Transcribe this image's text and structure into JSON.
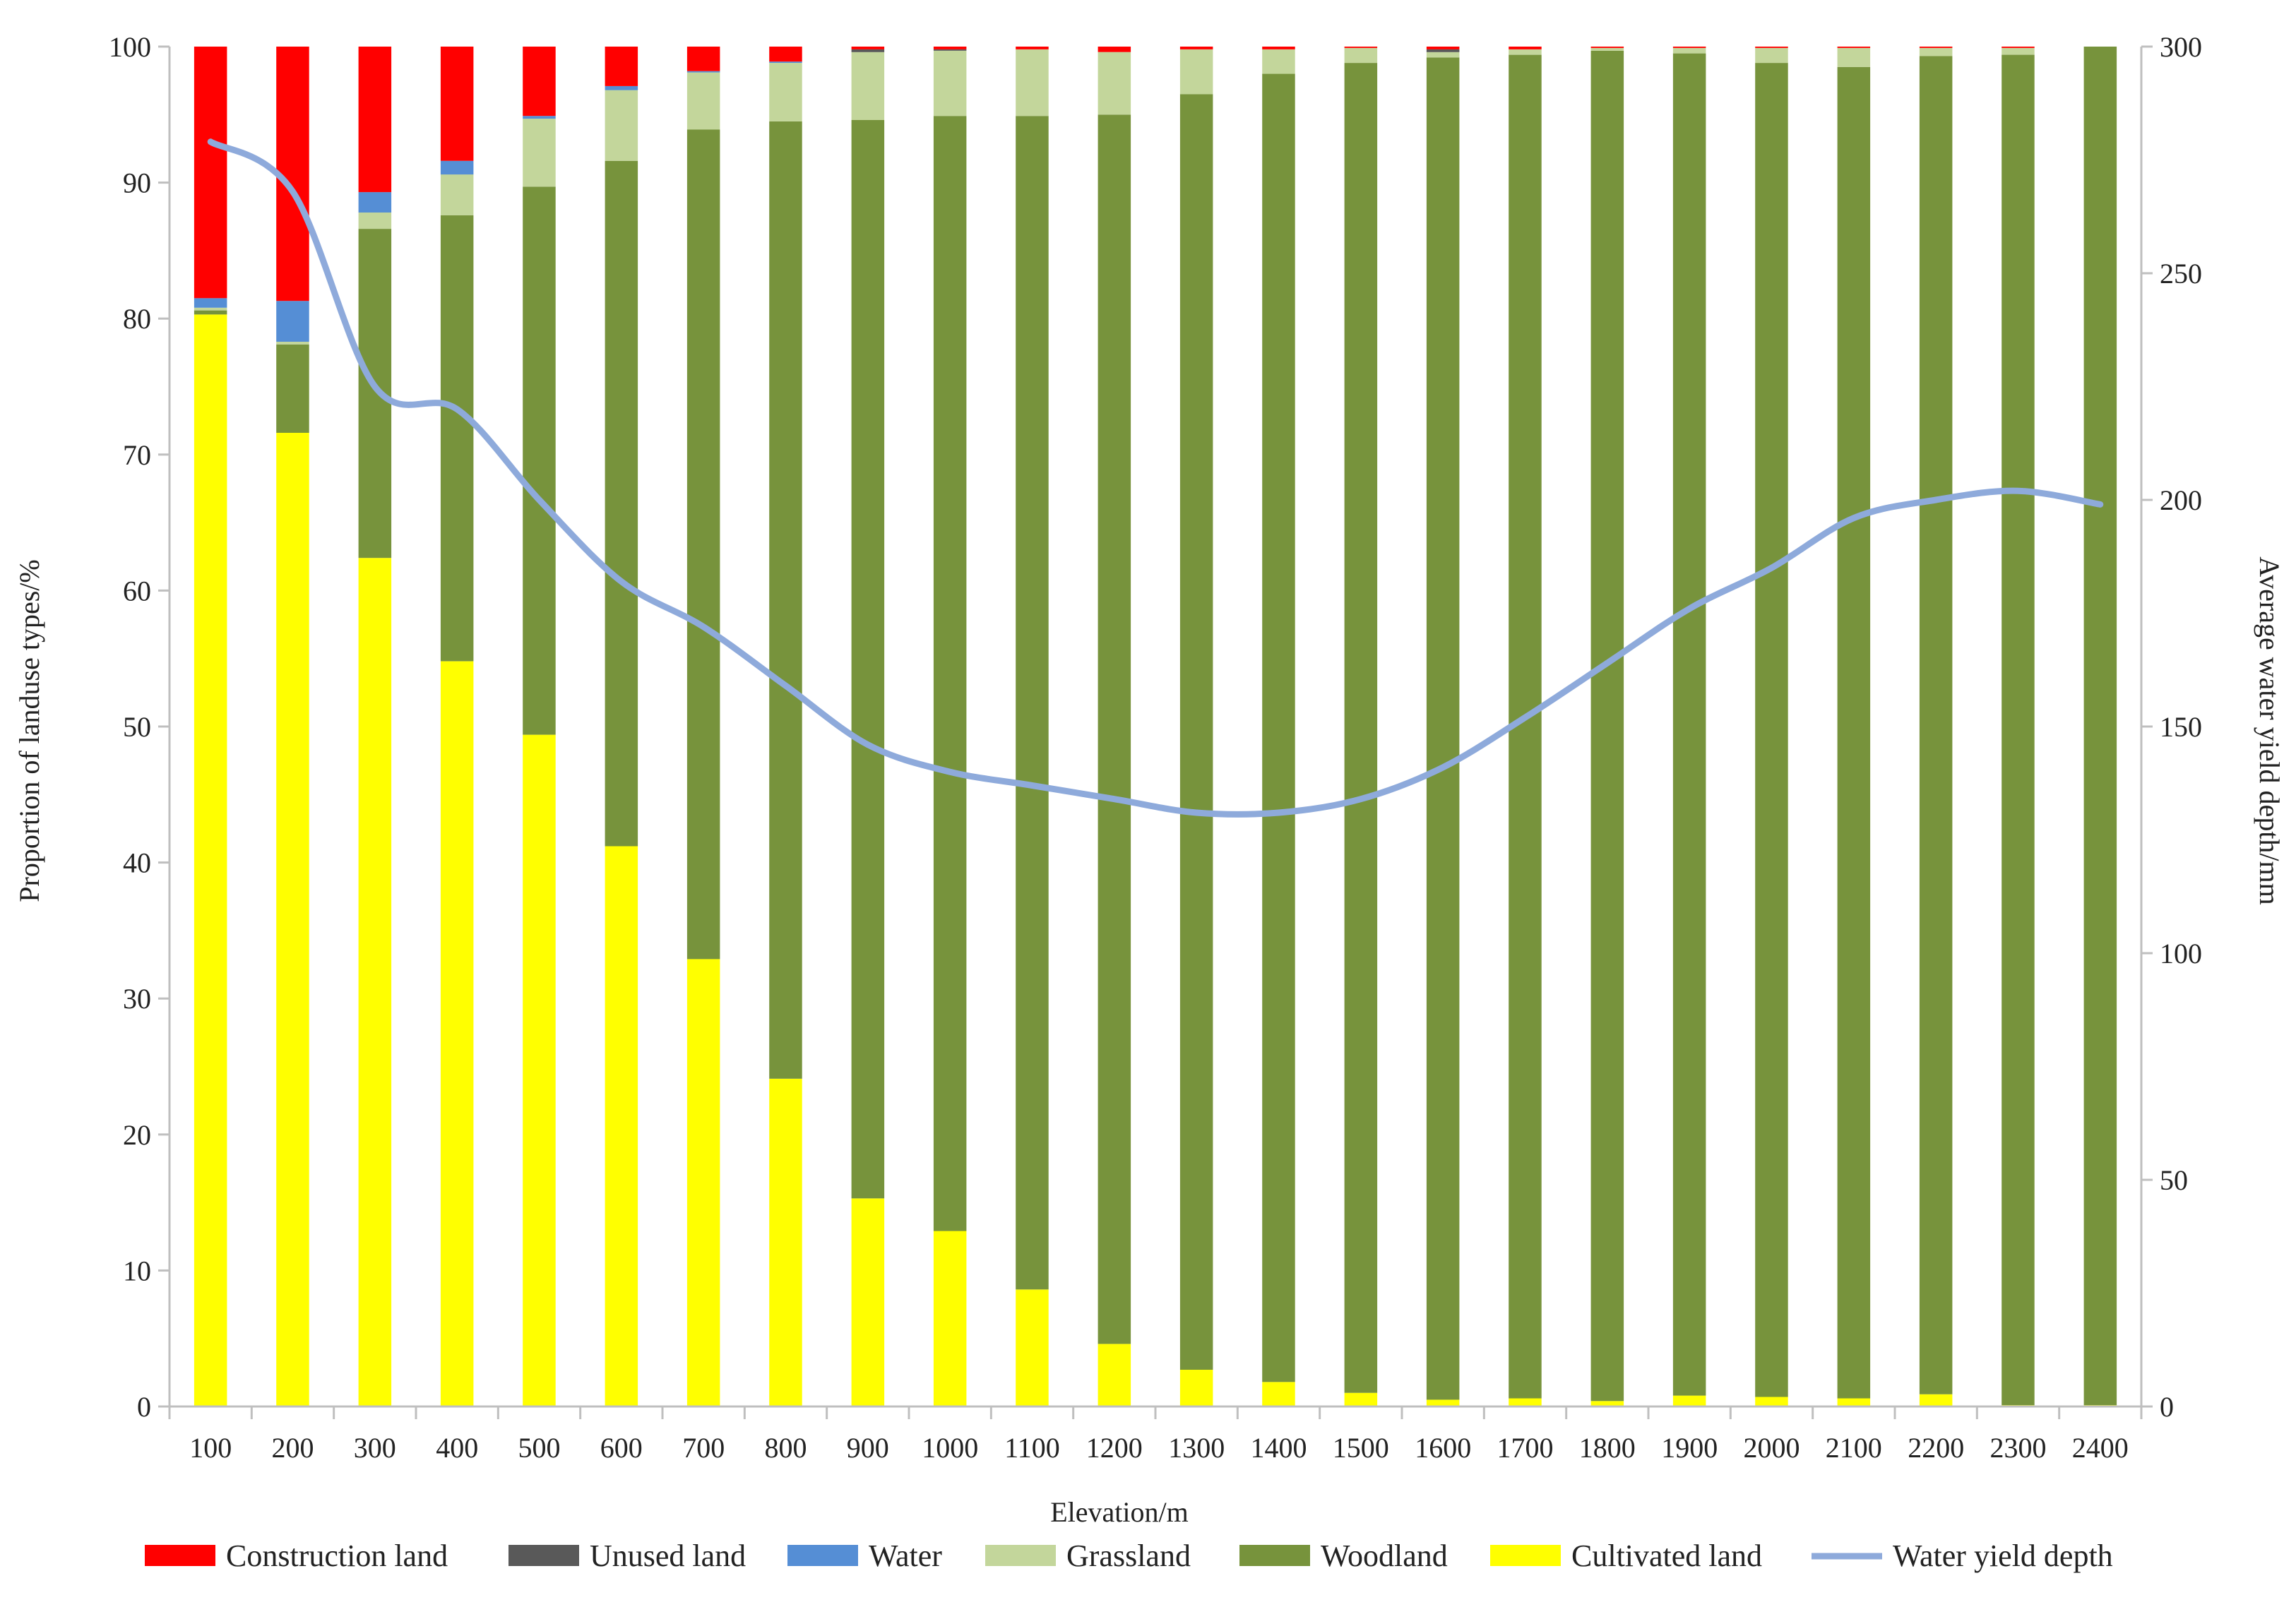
{
  "chart_data": {
    "type": "bar",
    "stacked": true,
    "xlabel": "Elevation/m",
    "ylabel_left": "Proportion of landuse types/%",
    "ylabel_right": "Average water yield depth/mm",
    "ylim_left": [
      0,
      100
    ],
    "ylim_right": [
      0,
      300
    ],
    "yticks_left": [
      "0",
      "10",
      "20",
      "30",
      "40",
      "50",
      "60",
      "70",
      "80",
      "90",
      "100"
    ],
    "yticks_right": [
      "0",
      "50",
      "100",
      "150",
      "200",
      "250",
      "300"
    ],
    "grid": false,
    "legend_position": "bottom",
    "categories": [
      "100",
      "200",
      "300",
      "400",
      "500",
      "600",
      "700",
      "800",
      "900",
      "1000",
      "1100",
      "1200",
      "1300",
      "1400",
      "1500",
      "1600",
      "1700",
      "1800",
      "1900",
      "2000",
      "2100",
      "2200",
      "2300",
      "2400"
    ],
    "series": [
      {
        "name": "Cultivated land",
        "color": "#ffff00",
        "values": [
          80.3,
          71.6,
          62.4,
          54.8,
          49.4,
          41.2,
          32.9,
          24.1,
          15.3,
          12.9,
          8.6,
          4.6,
          2.7,
          1.8,
          1.0,
          0.5,
          0.6,
          0.4,
          0.8,
          0.7,
          0.6,
          0.9,
          0.1,
          0.1
        ]
      },
      {
        "name": "Woodland",
        "color": "#77933c",
        "values": [
          0.3,
          6.5,
          24.2,
          32.8,
          40.3,
          50.4,
          61.0,
          70.4,
          79.3,
          82.0,
          86.3,
          90.4,
          93.8,
          96.2,
          97.8,
          98.7,
          98.8,
          99.3,
          98.7,
          98.1,
          97.9,
          98.4,
          99.3,
          99.9
        ]
      },
      {
        "name": "Grassland",
        "color": "#c3d69b",
        "values": [
          0.2,
          0.2,
          1.2,
          3.0,
          5.0,
          5.2,
          4.2,
          4.3,
          5.0,
          4.8,
          4.9,
          4.6,
          3.3,
          1.8,
          1.1,
          0.4,
          0.4,
          0.2,
          0.4,
          1.1,
          1.4,
          0.6,
          0.5,
          0.0
        ]
      },
      {
        "name": "Water",
        "color": "#558ed5",
        "values": [
          0.7,
          3.0,
          1.5,
          1.0,
          0.2,
          0.3,
          0.1,
          0.1,
          0.0,
          0.0,
          0.0,
          0.0,
          0.0,
          0.0,
          0.0,
          0.0,
          0.0,
          0.0,
          0.0,
          0.0,
          0.0,
          0.0,
          0.0,
          0.0
        ]
      },
      {
        "name": "Unused land",
        "color": "#595959",
        "values": [
          0.0,
          0.0,
          0.0,
          0.0,
          0.0,
          0.0,
          0.0,
          0.0,
          0.2,
          0.1,
          0.0,
          0.0,
          0.0,
          0.0,
          0.0,
          0.2,
          0.0,
          0.0,
          0.0,
          0.0,
          0.0,
          0.0,
          0.0,
          0.0
        ]
      },
      {
        "name": "Construction land",
        "color": "#ff0000",
        "values": [
          18.5,
          18.7,
          10.7,
          8.4,
          5.1,
          2.9,
          1.8,
          1.1,
          0.2,
          0.2,
          0.2,
          0.4,
          0.2,
          0.2,
          0.1,
          0.2,
          0.2,
          0.1,
          0.1,
          0.1,
          0.1,
          0.1,
          0.1,
          0.0
        ]
      }
    ],
    "line_series": {
      "name": "Water yield depth",
      "color": "#8eaadb",
      "axis": "right",
      "values": [
        279,
        268,
        225,
        220,
        200,
        182,
        172,
        159,
        146,
        140,
        137,
        134,
        131,
        131,
        134,
        141,
        152,
        164,
        176,
        185,
        196,
        200,
        202,
        199
      ]
    },
    "legend": [
      {
        "label": "Construction land",
        "color": "#ff0000",
        "kind": "box"
      },
      {
        "label": "Unused land",
        "color": "#595959",
        "kind": "box"
      },
      {
        "label": "Water",
        "color": "#558ed5",
        "kind": "box"
      },
      {
        "label": "Grassland",
        "color": "#c3d69b",
        "kind": "box"
      },
      {
        "label": "Woodland",
        "color": "#77933c",
        "kind": "box"
      },
      {
        "label": "Cultivated land",
        "color": "#ffff00",
        "kind": "box"
      },
      {
        "label": "Water yield depth",
        "color": "#8eaadb",
        "kind": "line"
      }
    ]
  }
}
